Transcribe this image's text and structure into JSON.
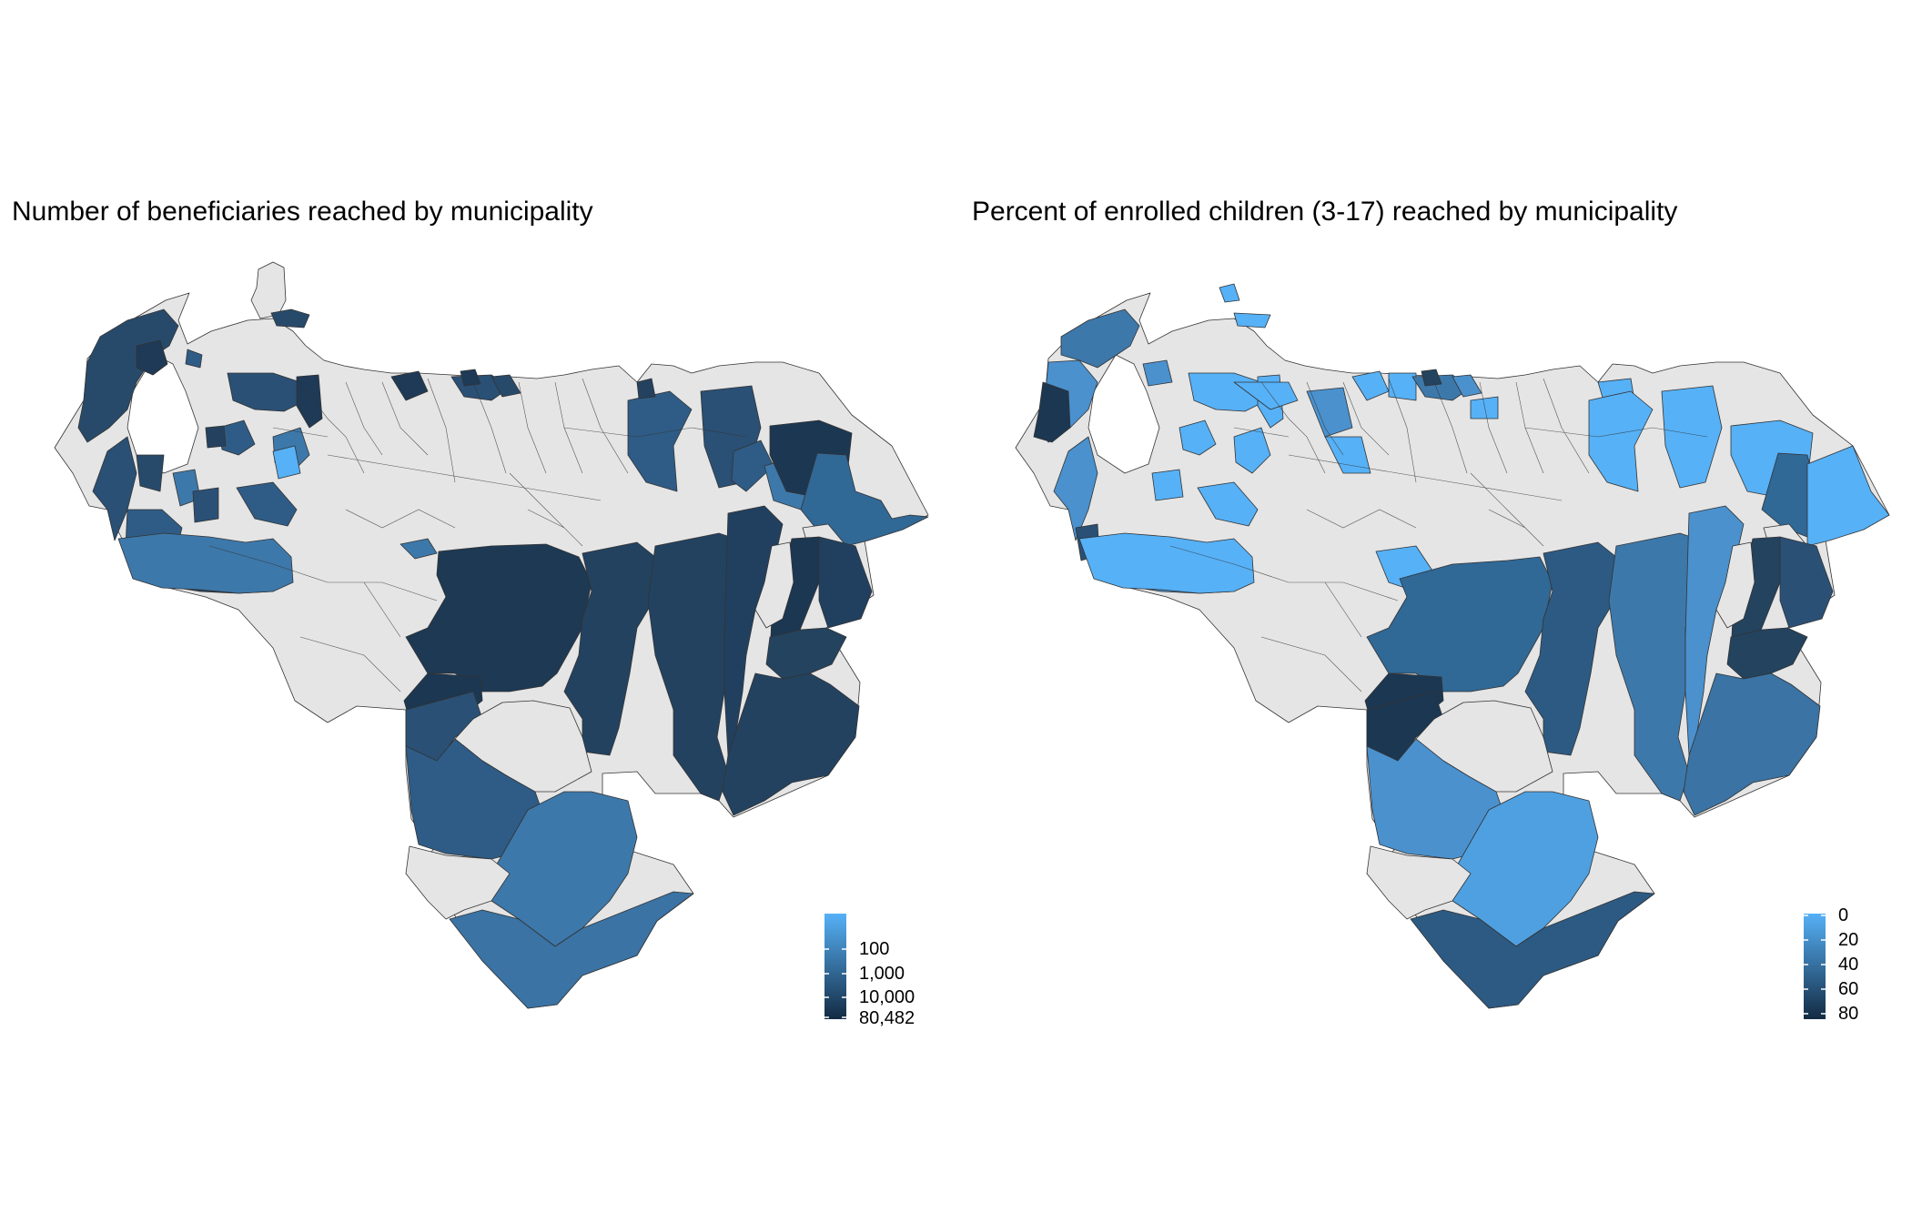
{
  "maps": [
    {
      "id": "beneficiaries",
      "title": "Number of beneficiaries reached by municipality",
      "legend": {
        "scale": "log",
        "ticks": [
          "100",
          "1,000",
          "10,000",
          "80,482"
        ],
        "color_low": "#56B1F7",
        "color_high": "#132B43"
      }
    },
    {
      "id": "percent",
      "title": "Percent of enrolled children (3-17) reached by municipality",
      "legend": {
        "scale": "linear",
        "ticks": [
          "0",
          "20",
          "40",
          "60",
          "80"
        ],
        "color_low": "#56B1F7",
        "color_high": "#132B43"
      }
    }
  ],
  "colors": {
    "no_data": "#E5E5E5",
    "border": "#333333",
    "background": "#FFFFFF"
  }
}
